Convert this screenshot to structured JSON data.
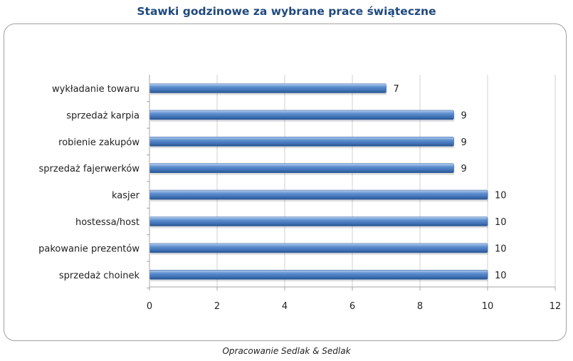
{
  "chart_data": {
    "type": "bar",
    "orientation": "horizontal",
    "title": "Stawki godzinowe za wybrane prace świąteczne",
    "categories": [
      "wykładanie towaru",
      "sprzedaż karpia",
      "robienie zakupów",
      "sprzedaż fajerwerków",
      "kasjer",
      "hostessa/host",
      "pakowanie prezentów",
      "sprzedaż choinek"
    ],
    "values": [
      7,
      9,
      9,
      9,
      10,
      10,
      10,
      10
    ],
    "data_labels": [
      "7",
      "9",
      "9",
      "9",
      "10",
      "10",
      "10",
      "10"
    ],
    "xlim": [
      0,
      12
    ],
    "x_ticks": [
      0,
      2,
      4,
      6,
      8,
      10,
      12
    ],
    "x_tick_labels": [
      "0",
      "2",
      "4",
      "6",
      "8",
      "10",
      "12"
    ],
    "grid": "vertical",
    "legend": "none",
    "bar_color": "#4a7ebb"
  },
  "source_note": "Opracowanie Sedlak & Sedlak"
}
